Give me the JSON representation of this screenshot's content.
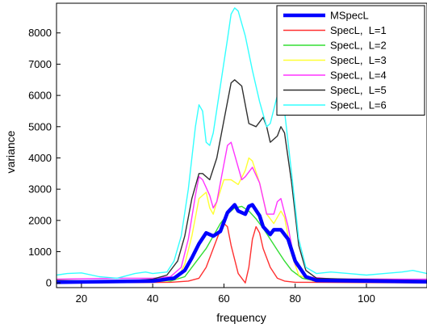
{
  "chart_data": {
    "type": "line",
    "xlabel": "frequency",
    "ylabel": "variance",
    "xlim": [
      13,
      117
    ],
    "ylim": [
      -150,
      8950
    ],
    "xticks": [
      20,
      40,
      60,
      80,
      100
    ],
    "yticks": [
      0,
      1000,
      2000,
      3000,
      4000,
      5000,
      6000,
      7000,
      8000
    ],
    "legend_position": "top-right",
    "grid": false,
    "series": [
      {
        "name": "MSpecL",
        "color": "#0000ff",
        "emphasis": "thick",
        "points": [
          [
            13,
            20
          ],
          [
            40,
            60
          ],
          [
            46,
            150
          ],
          [
            49,
            400
          ],
          [
            51,
            800
          ],
          [
            53,
            1250
          ],
          [
            55,
            1600
          ],
          [
            57,
            1500
          ],
          [
            59,
            1650
          ],
          [
            61,
            2250
          ],
          [
            63,
            2500
          ],
          [
            64,
            2300
          ],
          [
            66,
            2200
          ],
          [
            67,
            2450
          ],
          [
            68,
            2500
          ],
          [
            70,
            2150
          ],
          [
            71,
            1800
          ],
          [
            73,
            1550
          ],
          [
            74,
            1700
          ],
          [
            76,
            1700
          ],
          [
            78,
            1400
          ],
          [
            80,
            700
          ],
          [
            83,
            200
          ],
          [
            86,
            80
          ],
          [
            117,
            40
          ]
        ]
      },
      {
        "name": "SpecL,  L=1",
        "color": "#ff3030",
        "points": [
          [
            13,
            0
          ],
          [
            45,
            20
          ],
          [
            50,
            60
          ],
          [
            53,
            150
          ],
          [
            55,
            500
          ],
          [
            57,
            1100
          ],
          [
            59,
            1700
          ],
          [
            60,
            1900
          ],
          [
            61,
            1800
          ],
          [
            62,
            1200
          ],
          [
            64,
            300
          ],
          [
            66,
            0
          ],
          [
            67,
            500
          ],
          [
            68,
            1400
          ],
          [
            69,
            1800
          ],
          [
            70,
            1600
          ],
          [
            71,
            1100
          ],
          [
            73,
            500
          ],
          [
            75,
            150
          ],
          [
            77,
            60
          ],
          [
            80,
            20
          ],
          [
            117,
            0
          ]
        ]
      },
      {
        "name": "SpecL,  L=2",
        "color": "#33dd33",
        "points": [
          [
            13,
            10
          ],
          [
            45,
            60
          ],
          [
            49,
            200
          ],
          [
            51,
            500
          ],
          [
            53,
            800
          ],
          [
            55,
            1100
          ],
          [
            57,
            1500
          ],
          [
            59,
            1900
          ],
          [
            61,
            2200
          ],
          [
            63,
            2400
          ],
          [
            65,
            2450
          ],
          [
            67,
            2300
          ],
          [
            69,
            2050
          ],
          [
            71,
            1750
          ],
          [
            73,
            1400
          ],
          [
            75,
            1050
          ],
          [
            77,
            700
          ],
          [
            79,
            400
          ],
          [
            82,
            150
          ],
          [
            86,
            50
          ],
          [
            117,
            10
          ]
        ]
      },
      {
        "name": "SpecL,  L=3",
        "color": "#ffff33",
        "points": [
          [
            13,
            30
          ],
          [
            44,
            60
          ],
          [
            47,
            150
          ],
          [
            49,
            600
          ],
          [
            51,
            1500
          ],
          [
            53,
            2700
          ],
          [
            55,
            2900
          ],
          [
            56,
            2400
          ],
          [
            57,
            2200
          ],
          [
            58,
            2600
          ],
          [
            60,
            3300
          ],
          [
            62,
            3300
          ],
          [
            64,
            3150
          ],
          [
            66,
            3600
          ],
          [
            67,
            4000
          ],
          [
            68,
            3900
          ],
          [
            70,
            3200
          ],
          [
            72,
            2200
          ],
          [
            74,
            1900
          ],
          [
            76,
            2300
          ],
          [
            77,
            2100
          ],
          [
            79,
            900
          ],
          [
            81,
            250
          ],
          [
            85,
            60
          ],
          [
            117,
            30
          ]
        ]
      },
      {
        "name": "SpecL,  L=4",
        "color": "#ff33ff",
        "points": [
          [
            13,
            120
          ],
          [
            30,
            150
          ],
          [
            40,
            150
          ],
          [
            45,
            200
          ],
          [
            48,
            500
          ],
          [
            50,
            1400
          ],
          [
            52,
            2800
          ],
          [
            53,
            3400
          ],
          [
            54,
            3300
          ],
          [
            56,
            2800
          ],
          [
            57,
            2400
          ],
          [
            58,
            2600
          ],
          [
            60,
            3800
          ],
          [
            61,
            4400
          ],
          [
            62,
            4500
          ],
          [
            63,
            4100
          ],
          [
            65,
            3300
          ],
          [
            66,
            3400
          ],
          [
            68,
            3700
          ],
          [
            70,
            3200
          ],
          [
            72,
            2200
          ],
          [
            74,
            2200
          ],
          [
            75,
            2600
          ],
          [
            76,
            2700
          ],
          [
            78,
            1800
          ],
          [
            80,
            600
          ],
          [
            83,
            200
          ],
          [
            90,
            130
          ],
          [
            117,
            120
          ]
        ]
      },
      {
        "name": "SpecL,  L=5",
        "color": "#303030",
        "points": [
          [
            13,
            80
          ],
          [
            25,
            60
          ],
          [
            35,
            80
          ],
          [
            40,
            120
          ],
          [
            44,
            250
          ],
          [
            47,
            700
          ],
          [
            49,
            1500
          ],
          [
            51,
            2700
          ],
          [
            53,
            3500
          ],
          [
            54,
            3500
          ],
          [
            56,
            3300
          ],
          [
            58,
            4000
          ],
          [
            60,
            5200
          ],
          [
            62,
            6400
          ],
          [
            63,
            6500
          ],
          [
            65,
            6300
          ],
          [
            66,
            5700
          ],
          [
            67,
            5100
          ],
          [
            69,
            5000
          ],
          [
            71,
            5300
          ],
          [
            72,
            5000
          ],
          [
            73,
            4500
          ],
          [
            75,
            4700
          ],
          [
            76,
            5000
          ],
          [
            77,
            4800
          ],
          [
            79,
            3200
          ],
          [
            81,
            1200
          ],
          [
            83,
            400
          ],
          [
            86,
            150
          ],
          [
            95,
            120
          ],
          [
            117,
            80
          ]
        ]
      },
      {
        "name": "SpecL,  L=6",
        "color": "#33ffff",
        "points": [
          [
            13,
            250
          ],
          [
            16,
            300
          ],
          [
            20,
            320
          ],
          [
            25,
            200
          ],
          [
            30,
            150
          ],
          [
            35,
            300
          ],
          [
            38,
            350
          ],
          [
            40,
            300
          ],
          [
            44,
            350
          ],
          [
            46,
            700
          ],
          [
            48,
            1500
          ],
          [
            50,
            3000
          ],
          [
            52,
            5000
          ],
          [
            53,
            5700
          ],
          [
            54,
            5500
          ],
          [
            55,
            4500
          ],
          [
            56,
            4400
          ],
          [
            57,
            4800
          ],
          [
            59,
            6300
          ],
          [
            61,
            7800
          ],
          [
            62,
            8600
          ],
          [
            63,
            8800
          ],
          [
            64,
            8700
          ],
          [
            66,
            7900
          ],
          [
            68,
            6800
          ],
          [
            70,
            5800
          ],
          [
            72,
            5000
          ],
          [
            73,
            5100
          ],
          [
            75,
            6000
          ],
          [
            76,
            6200
          ],
          [
            77,
            5500
          ],
          [
            79,
            3500
          ],
          [
            81,
            1400
          ],
          [
            83,
            500
          ],
          [
            86,
            300
          ],
          [
            90,
            350
          ],
          [
            95,
            300
          ],
          [
            100,
            250
          ],
          [
            105,
            300
          ],
          [
            110,
            350
          ],
          [
            113,
            400
          ],
          [
            117,
            300
          ]
        ]
      }
    ]
  }
}
